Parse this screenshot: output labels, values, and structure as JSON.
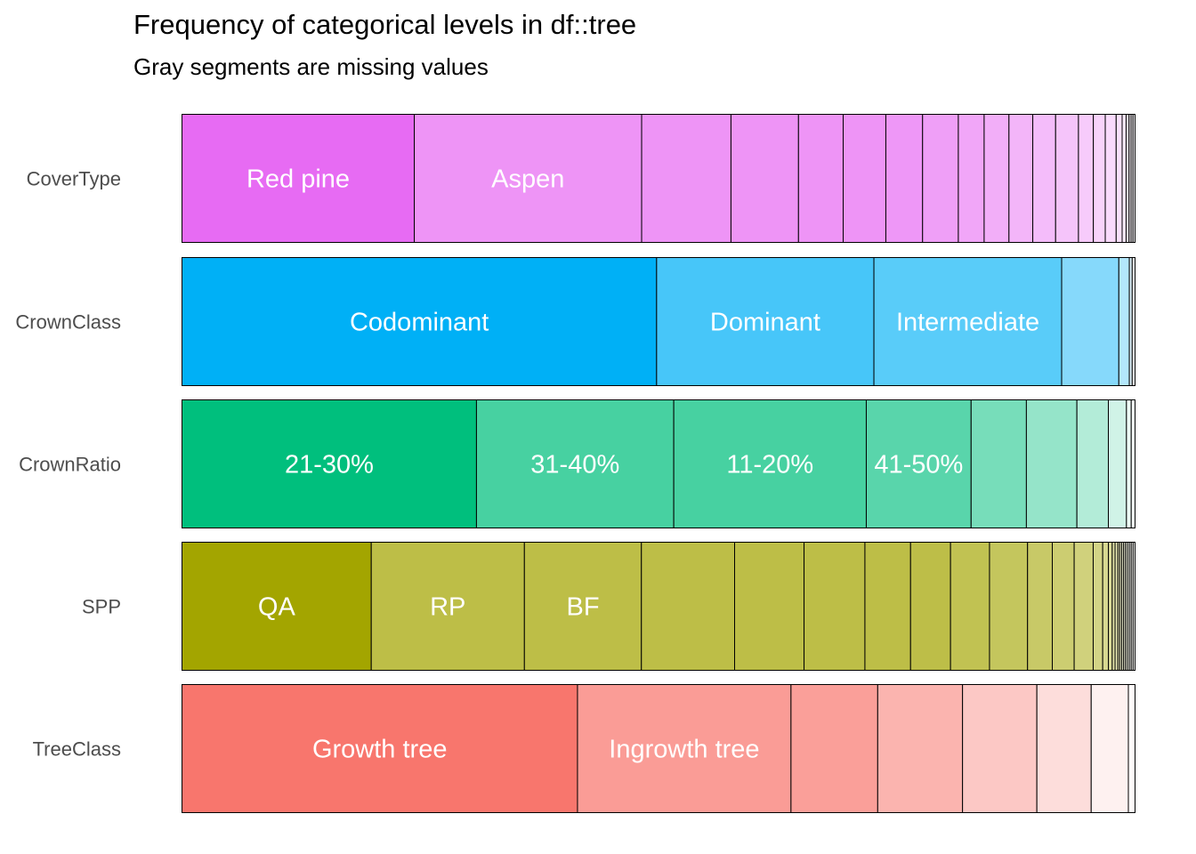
{
  "chart_data": {
    "type": "stacked-bar",
    "title": "Frequency of categorical levels in df::tree",
    "subtitle": "Gray segments are missing values",
    "orientation": "horizontal",
    "xlim": [
      0,
      1
    ],
    "rows": [
      {
        "name": "CoverType",
        "color": "#E76BF3",
        "proportions": [
          0.234,
          0.229,
          0.09,
          0.068,
          0.045,
          0.043,
          0.037,
          0.036,
          0.026,
          0.025,
          0.024,
          0.023,
          0.023,
          0.015,
          0.012,
          0.011,
          0.006,
          0.004,
          0.003,
          0.002,
          0.002,
          0.002
        ],
        "labels": [
          "Red pine",
          "Aspen"
        ]
      },
      {
        "name": "CrownClass",
        "color": "#00B0F6",
        "proportions": [
          0.498,
          0.228,
          0.197,
          0.06,
          0.011,
          0.003,
          0.003
        ],
        "labels": [
          "Codominant",
          "Dominant",
          "Intermediate"
        ]
      },
      {
        "name": "CrownRatio",
        "color": "#00BF7D",
        "proportions": [
          0.309,
          0.207,
          0.202,
          0.11,
          0.058,
          0.053,
          0.033,
          0.019,
          0.005,
          0.004
        ],
        "labels": [
          "21-30%",
          "31-40%",
          "11-20%",
          "41-50%"
        ]
      },
      {
        "name": "SPP",
        "color": "#A3A500",
        "proportions": [
          0.199,
          0.161,
          0.123,
          0.098,
          0.073,
          0.064,
          0.048,
          0.042,
          0.041,
          0.04,
          0.026,
          0.023,
          0.02,
          0.01,
          0.006,
          0.004,
          0.003,
          0.003,
          0.002,
          0.002,
          0.002,
          0.002,
          0.002,
          0.002,
          0.002,
          0.002,
          0.002
        ],
        "labels": [
          "QA",
          "RP",
          "BF"
        ]
      },
      {
        "name": "TreeClass",
        "color": "#F8766D",
        "proportions": [
          0.415,
          0.224,
          0.091,
          0.089,
          0.078,
          0.057,
          0.039,
          0.007
        ],
        "labels": [
          "Growth tree",
          "Ingrowth tree"
        ]
      }
    ]
  }
}
